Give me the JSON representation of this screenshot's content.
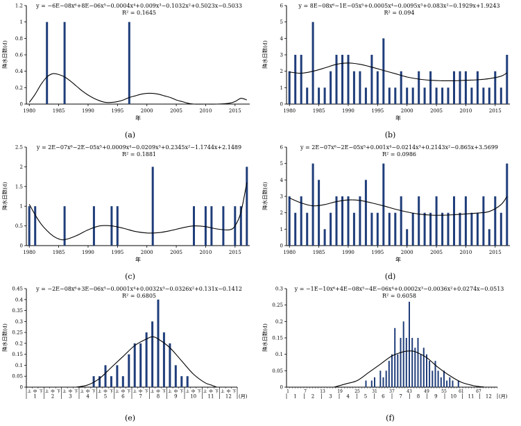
{
  "figure": {
    "bar_color": "#1F3D7A",
    "line_color": "#000000",
    "background": "#FFFFFF"
  },
  "chart_data": [
    {
      "id": "a",
      "type": "bar",
      "caption": "(a)",
      "equation": "y = −6E−08x⁶+8E−06x⁵−0.0004x⁴+0.009x³−0.1032x²+0.5023x−0.5033",
      "r2_label": "R² = 0.1645",
      "ylabel": "降水日数(d)",
      "xlabel": "年",
      "axis_type": "years",
      "ylim": [
        0,
        1.2
      ],
      "yticks": [
        "0",
        "0.2",
        "0.4",
        "0.6",
        "0.8",
        "1",
        "1.2"
      ],
      "x_start": 1980,
      "xticks": [
        1980,
        1985,
        1990,
        1995,
        2000,
        2005,
        2010,
        2015
      ],
      "values": [
        0,
        0,
        0,
        1,
        0,
        0,
        1,
        0,
        0,
        0,
        0,
        0,
        0,
        0,
        0,
        0,
        0,
        1,
        0,
        0,
        0,
        0,
        0,
        0,
        0,
        0,
        0,
        0,
        0,
        0,
        0,
        0,
        0,
        0,
        0,
        0,
        0,
        0
      ],
      "trend": [
        [
          0,
          0.02
        ],
        [
          1,
          0.12
        ],
        [
          2,
          0.24
        ],
        [
          3,
          0.33
        ],
        [
          4,
          0.37
        ],
        [
          5,
          0.36
        ],
        [
          6,
          0.33
        ],
        [
          7,
          0.28
        ],
        [
          8,
          0.22
        ],
        [
          9,
          0.16
        ],
        [
          10,
          0.11
        ],
        [
          11,
          0.07
        ],
        [
          12,
          0.04
        ],
        [
          13,
          0.02
        ],
        [
          14,
          0.02
        ],
        [
          15,
          0.03
        ],
        [
          16,
          0.05
        ],
        [
          17,
          0.08
        ],
        [
          18,
          0.1
        ],
        [
          19,
          0.12
        ],
        [
          20,
          0.13
        ],
        [
          21,
          0.13
        ],
        [
          22,
          0.12
        ],
        [
          23,
          0.1
        ],
        [
          24,
          0.08
        ],
        [
          25,
          0.05
        ],
        [
          26,
          0.03
        ],
        [
          27,
          0.01
        ],
        [
          28,
          0
        ],
        [
          30,
          0
        ],
        [
          32,
          0
        ],
        [
          34,
          0.01
        ],
        [
          35,
          0.03
        ],
        [
          36,
          0.07
        ],
        [
          37,
          0.05
        ]
      ]
    },
    {
      "id": "b",
      "type": "bar",
      "caption": "(b)",
      "equation": "y = 8E−08x⁶−1E−05x⁵+0.0005x⁴−0.0095x³+0.083x²−0.1929x+1.9243",
      "r2_label": "R² = 0.094",
      "ylabel": "降水日数(d)",
      "xlabel": "年",
      "axis_type": "years",
      "ylim": [
        0,
        6
      ],
      "yticks": [
        "0",
        "1",
        "2",
        "3",
        "4",
        "5",
        "6"
      ],
      "x_start": 1980,
      "xticks": [
        1980,
        1985,
        1990,
        1995,
        2000,
        2005,
        2010,
        2015
      ],
      "values": [
        2,
        3,
        3,
        1,
        5,
        1,
        1,
        2,
        3,
        3,
        3,
        2,
        2,
        1,
        3,
        2,
        4,
        1,
        1,
        2,
        1,
        1,
        2,
        1,
        2,
        1,
        1,
        1,
        2,
        2,
        2,
        1,
        2,
        1,
        1,
        2,
        1,
        3
      ],
      "trend": [
        [
          0,
          1.95
        ],
        [
          2,
          1.88
        ],
        [
          4,
          2.0
        ],
        [
          6,
          2.2
        ],
        [
          8,
          2.42
        ],
        [
          10,
          2.5
        ],
        [
          12,
          2.42
        ],
        [
          14,
          2.25
        ],
        [
          16,
          2.05
        ],
        [
          18,
          1.85
        ],
        [
          20,
          1.65
        ],
        [
          22,
          1.52
        ],
        [
          24,
          1.45
        ],
        [
          26,
          1.42
        ],
        [
          28,
          1.42
        ],
        [
          30,
          1.45
        ],
        [
          32,
          1.48
        ],
        [
          34,
          1.55
        ],
        [
          36,
          1.7
        ],
        [
          37,
          1.9
        ]
      ]
    },
    {
      "id": "c",
      "type": "bar",
      "caption": "(c)",
      "equation": "y = 2E−07x⁶−2E−05x⁵+0.0009x⁴−0.0209x³+0.2345x²−1.1744x+2.1489",
      "r2_label": "R² = 0.1881",
      "ylabel": "降水日数(d)",
      "xlabel": "年",
      "axis_type": "years",
      "ylim": [
        0,
        2.5
      ],
      "yticks": [
        "0",
        "0.5",
        "1",
        "1.5",
        "2",
        "2.5"
      ],
      "x_start": 1980,
      "xticks": [
        1980,
        1985,
        1990,
        1995,
        2000,
        2005,
        2010,
        2015
      ],
      "values": [
        1,
        1,
        0,
        0,
        0,
        0,
        1,
        0,
        0,
        0,
        0,
        1,
        0,
        0,
        1,
        1,
        0,
        0,
        0,
        0,
        0,
        2,
        0,
        0,
        0,
        0,
        0,
        0,
        1,
        0,
        1,
        1,
        0,
        1,
        0,
        1,
        1,
        2
      ],
      "trend": [
        [
          0,
          1.05
        ],
        [
          1,
          0.78
        ],
        [
          2,
          0.55
        ],
        [
          3,
          0.38
        ],
        [
          4,
          0.25
        ],
        [
          5,
          0.17
        ],
        [
          6,
          0.15
        ],
        [
          8,
          0.25
        ],
        [
          10,
          0.4
        ],
        [
          12,
          0.5
        ],
        [
          14,
          0.5
        ],
        [
          16,
          0.44
        ],
        [
          18,
          0.36
        ],
        [
          20,
          0.32
        ],
        [
          22,
          0.33
        ],
        [
          24,
          0.38
        ],
        [
          26,
          0.45
        ],
        [
          28,
          0.5
        ],
        [
          30,
          0.48
        ],
        [
          32,
          0.42
        ],
        [
          34,
          0.4
        ],
        [
          35,
          0.5
        ],
        [
          36,
          0.85
        ],
        [
          37,
          1.6
        ]
      ]
    },
    {
      "id": "d",
      "type": "bar",
      "caption": "(d)",
      "equation": "y = 2E−07x⁶−2E−05x⁵+0.001x⁴−0.0214x³+0.2143x²−0.865x+3.5699",
      "r2_label": "R² = 0.0986",
      "ylabel": "降水日数(d)",
      "xlabel": "年",
      "axis_type": "years",
      "ylim": [
        0,
        6
      ],
      "yticks": [
        "0",
        "1",
        "2",
        "3",
        "4",
        "5",
        "6"
      ],
      "x_start": 1980,
      "xticks": [
        1980,
        1985,
        1990,
        1995,
        2000,
        2005,
        2010,
        2015
      ],
      "values": [
        3,
        2,
        3,
        2,
        5,
        4,
        1,
        2,
        3,
        3,
        3,
        2,
        3,
        4,
        2,
        2,
        5,
        2,
        2,
        3,
        1,
        2,
        3,
        2,
        2,
        3,
        2,
        2,
        3,
        2,
        3,
        2,
        2,
        3,
        1,
        3,
        2,
        5
      ],
      "trend": [
        [
          0,
          2.9
        ],
        [
          2,
          2.6
        ],
        [
          4,
          2.42
        ],
        [
          6,
          2.5
        ],
        [
          8,
          2.68
        ],
        [
          10,
          2.78
        ],
        [
          12,
          2.75
        ],
        [
          14,
          2.6
        ],
        [
          16,
          2.42
        ],
        [
          18,
          2.22
        ],
        [
          20,
          2.05
        ],
        [
          22,
          1.92
        ],
        [
          24,
          1.86
        ],
        [
          26,
          1.85
        ],
        [
          28,
          1.88
        ],
        [
          30,
          1.93
        ],
        [
          32,
          1.98
        ],
        [
          34,
          2.08
        ],
        [
          36,
          2.5
        ],
        [
          37,
          3.0
        ]
      ]
    },
    {
      "id": "e",
      "type": "bar",
      "caption": "(e)",
      "equation": "y = −2E−08x⁶+3E−06x⁵−0.0001x⁴+0.0032x³−0.0326x²+0.131x−0.1412",
      "r2_label": "R² = 0.6805",
      "ylabel": "降水日数(d)",
      "xlabel": "(月)",
      "axis_type": "tenday",
      "ylim": [
        0,
        0.45
      ],
      "yticks": [
        "0",
        "0.05",
        "0.1",
        "0.15",
        "0.2",
        "0.25",
        "0.3",
        "0.35",
        "0.4",
        "0.45"
      ],
      "period_labels": [
        "上",
        "中",
        "下"
      ],
      "months": [
        "1",
        "2",
        "3",
        "4",
        "5",
        "6",
        "7",
        "8",
        "9",
        "10",
        "11",
        "12"
      ],
      "month_unit": "(月)",
      "values": [
        0,
        0,
        0,
        0,
        0,
        0,
        0,
        0,
        0,
        0,
        0,
        0.05,
        0.05,
        0.1,
        0.05,
        0.1,
        0.05,
        0.15,
        0.2,
        0.2,
        0.25,
        0.3,
        0.4,
        0.25,
        0.2,
        0.1,
        0.05,
        0.05,
        0,
        0,
        0,
        0,
        0,
        0,
        0,
        0
      ],
      "trend": [
        [
          8,
          0
        ],
        [
          10,
          0.01
        ],
        [
          12,
          0.04
        ],
        [
          14,
          0.09
        ],
        [
          16,
          0.14
        ],
        [
          18,
          0.19
        ],
        [
          20,
          0.22
        ],
        [
          21,
          0.23
        ],
        [
          22,
          0.22
        ],
        [
          24,
          0.18
        ],
        [
          26,
          0.12
        ],
        [
          28,
          0.06
        ],
        [
          30,
          0.02
        ],
        [
          31,
          0.01
        ],
        [
          32,
          0
        ]
      ]
    },
    {
      "id": "f",
      "type": "bar",
      "caption": "(f)",
      "equation": "y = −1E−10x⁶+4E−08x⁵−4E−06x⁴+0.0002x³−0.0036x²+0.0274x−0.0513",
      "r2_label": "R² = 0.6058",
      "ylabel": "降水日数(d)",
      "xlabel": "(月)",
      "axis_type": "pentad",
      "ylim": [
        0,
        0.3
      ],
      "yticks": [
        "0",
        "0.05",
        "0.1",
        "0.15",
        "0.2",
        "0.25",
        "0.3"
      ],
      "xticks": [
        1,
        7,
        13,
        19,
        25,
        31,
        37,
        43,
        49,
        55,
        61,
        67
      ],
      "months": [
        "1",
        "2",
        "3",
        "4",
        "5",
        "6",
        "7",
        "8",
        "9",
        "10",
        "11",
        "12"
      ],
      "month_unit": "(月)",
      "values": [
        0,
        0,
        0,
        0,
        0,
        0,
        0,
        0,
        0,
        0,
        0,
        0,
        0,
        0,
        0,
        0,
        0,
        0,
        0,
        0,
        0,
        0,
        0,
        0,
        0,
        0,
        0,
        0.02,
        0,
        0.02,
        0.03,
        0,
        0.05,
        0.03,
        0.05,
        0.08,
        0.1,
        0.18,
        0.1,
        0.15,
        0.2,
        0.15,
        0.26,
        0.15,
        0.12,
        0.15,
        0.1,
        0.12,
        0.1,
        0.08,
        0.05,
        0.08,
        0.05,
        0.03,
        0.05,
        0.02,
        0.03,
        0.02,
        0,
        0.02,
        0,
        0,
        0,
        0,
        0,
        0,
        0,
        0,
        0,
        0,
        0,
        0,
        0
      ],
      "trend": [
        [
          16,
          0
        ],
        [
          20,
          0.01
        ],
        [
          24,
          0.02
        ],
        [
          28,
          0.045
        ],
        [
          32,
          0.07
        ],
        [
          36,
          0.095
        ],
        [
          40,
          0.108
        ],
        [
          42,
          0.11
        ],
        [
          44,
          0.108
        ],
        [
          48,
          0.09
        ],
        [
          52,
          0.06
        ],
        [
          56,
          0.035
        ],
        [
          60,
          0.015
        ],
        [
          64,
          0.005
        ],
        [
          68,
          0
        ]
      ]
    }
  ]
}
